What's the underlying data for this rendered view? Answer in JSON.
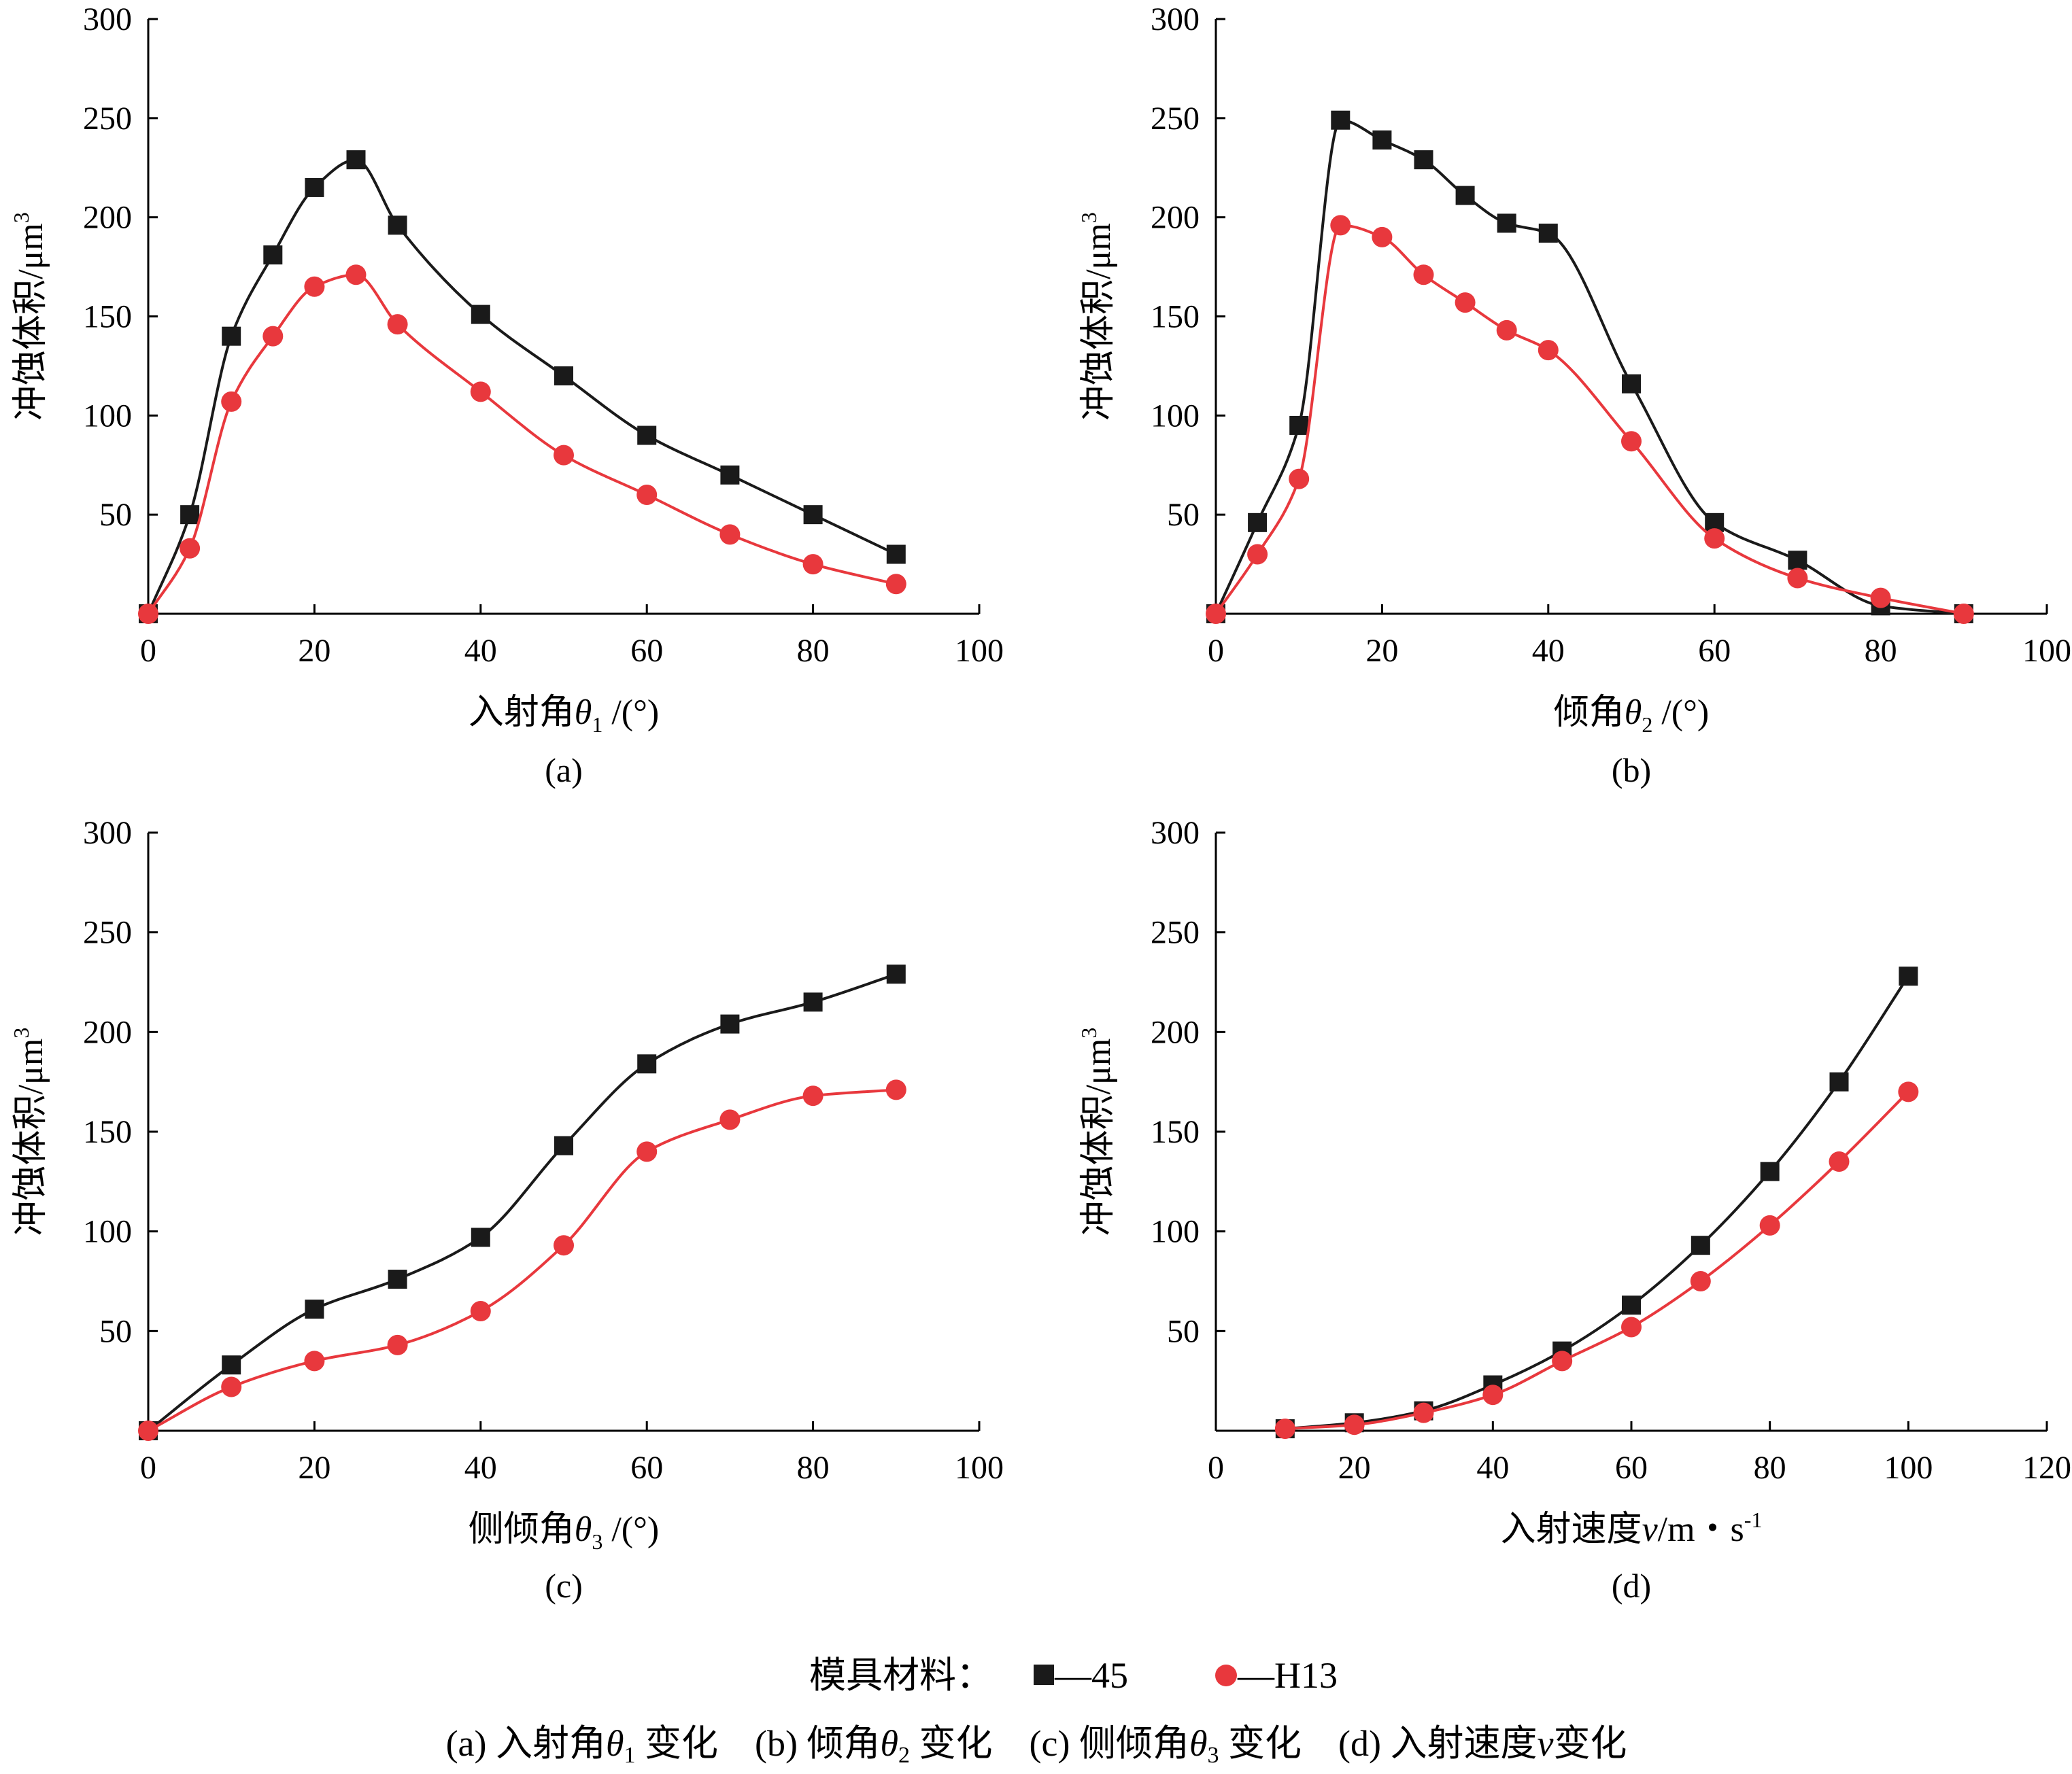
{
  "colors": {
    "series_45": "#1a1a1a",
    "series_h13": "#e8383d",
    "axis": "#000000"
  },
  "legend": {
    "label": "模具材料：",
    "items": [
      {
        "marker": "square",
        "text": "—45",
        "color": "#1a1a1a"
      },
      {
        "marker": "circle",
        "text": "—H13",
        "color": "#e8383d"
      }
    ]
  },
  "caption": "(a) 入射角θ1 变化　(b) 倾角θ2 变化　(c) 侧倾角θ3 变化　(d) 入射速度v变化",
  "chart_data": [
    {
      "type": "line",
      "tag": "(a)",
      "xlabel_pre": "入射角",
      "xlabel_var": "θ",
      "xlabel_sub": "1",
      "xlabel_post": " /(°)",
      "ylabel_pre": "冲蚀体积/μm",
      "ylabel_sup": "3",
      "xlim": [
        0,
        100
      ],
      "ylim": [
        0,
        300
      ],
      "xticks": [
        0,
        20,
        40,
        60,
        80,
        100
      ],
      "yticks": [
        50,
        100,
        150,
        200,
        250,
        300
      ],
      "series": [
        {
          "name": "45",
          "marker": "square",
          "color": "#1a1a1a",
          "x": [
            0,
            5,
            10,
            15,
            20,
            25,
            30,
            40,
            50,
            60,
            70,
            80,
            90
          ],
          "y": [
            0,
            50,
            140,
            181,
            215,
            229,
            196,
            151,
            120,
            90,
            70,
            50,
            30
          ]
        },
        {
          "name": "H13",
          "marker": "circle",
          "color": "#e8383d",
          "x": [
            0,
            5,
            10,
            15,
            20,
            25,
            30,
            40,
            50,
            60,
            70,
            80,
            90
          ],
          "y": [
            0,
            33,
            107,
            140,
            165,
            171,
            146,
            112,
            80,
            60,
            40,
            25,
            15
          ]
        }
      ]
    },
    {
      "type": "line",
      "tag": "(b)",
      "xlabel_pre": "倾角",
      "xlabel_var": "θ",
      "xlabel_sub": "2",
      "xlabel_post": " /(°)",
      "ylabel_pre": "冲蚀体积/μm",
      "ylabel_sup": "3",
      "xlim": [
        0,
        100
      ],
      "ylim": [
        0,
        300
      ],
      "xticks": [
        0,
        20,
        40,
        60,
        80,
        100
      ],
      "yticks": [
        50,
        100,
        150,
        200,
        250,
        300
      ],
      "series": [
        {
          "name": "45",
          "marker": "square",
          "color": "#1a1a1a",
          "x": [
            0,
            5,
            10,
            15,
            20,
            25,
            30,
            35,
            40,
            50,
            60,
            70,
            80,
            90
          ],
          "y": [
            0,
            46,
            95,
            249,
            239,
            229,
            211,
            197,
            192,
            116,
            46,
            27,
            4,
            0
          ]
        },
        {
          "name": "H13",
          "marker": "circle",
          "color": "#e8383d",
          "x": [
            0,
            5,
            10,
            15,
            20,
            25,
            30,
            35,
            40,
            50,
            60,
            70,
            80,
            90
          ],
          "y": [
            0,
            30,
            68,
            196,
            190,
            171,
            157,
            143,
            133,
            87,
            38,
            18,
            8,
            0
          ]
        }
      ]
    },
    {
      "type": "line",
      "tag": "(c)",
      "xlabel_pre": "侧倾角",
      "xlabel_var": "θ",
      "xlabel_sub": "3",
      "xlabel_post": " /(°)",
      "ylabel_pre": "冲蚀体积/μm",
      "ylabel_sup": "3",
      "xlim": [
        0,
        100
      ],
      "ylim": [
        0,
        300
      ],
      "xticks": [
        0,
        20,
        40,
        60,
        80,
        100
      ],
      "yticks": [
        50,
        100,
        150,
        200,
        250,
        300
      ],
      "series": [
        {
          "name": "45",
          "marker": "square",
          "color": "#1a1a1a",
          "x": [
            0,
            10,
            20,
            30,
            40,
            50,
            60,
            70,
            80,
            90
          ],
          "y": [
            0,
            33,
            61,
            76,
            97,
            143,
            184,
            204,
            215,
            229
          ]
        },
        {
          "name": "H13",
          "marker": "circle",
          "color": "#e8383d",
          "x": [
            0,
            10,
            20,
            30,
            40,
            50,
            60,
            70,
            80,
            90
          ],
          "y": [
            0,
            22,
            35,
            43,
            60,
            93,
            140,
            156,
            168,
            171
          ]
        }
      ]
    },
    {
      "type": "line",
      "tag": "(d)",
      "xlabel_pre": "入射速度",
      "xlabel_var": "v",
      "xlabel_sub": "",
      "xlabel_post": "/m・s",
      "xlabel_sup": "-1",
      "ylabel_pre": "冲蚀体积/μm",
      "ylabel_sup": "3",
      "xlim": [
        0,
        120
      ],
      "ylim": [
        0,
        300
      ],
      "xticks": [
        0,
        20,
        40,
        60,
        80,
        100,
        120
      ],
      "yticks": [
        50,
        100,
        150,
        200,
        250,
        300
      ],
      "series": [
        {
          "name": "45",
          "marker": "square",
          "color": "#1a1a1a",
          "x": [
            10,
            20,
            30,
            40,
            50,
            60,
            70,
            80,
            90,
            100
          ],
          "y": [
            1,
            4,
            10,
            23,
            40,
            63,
            93,
            130,
            175,
            228
          ]
        },
        {
          "name": "H13",
          "marker": "circle",
          "color": "#e8383d",
          "x": [
            10,
            20,
            30,
            40,
            50,
            60,
            70,
            80,
            90,
            100
          ],
          "y": [
            1,
            3,
            9,
            18,
            35,
            52,
            75,
            103,
            135,
            170
          ]
        }
      ]
    }
  ]
}
